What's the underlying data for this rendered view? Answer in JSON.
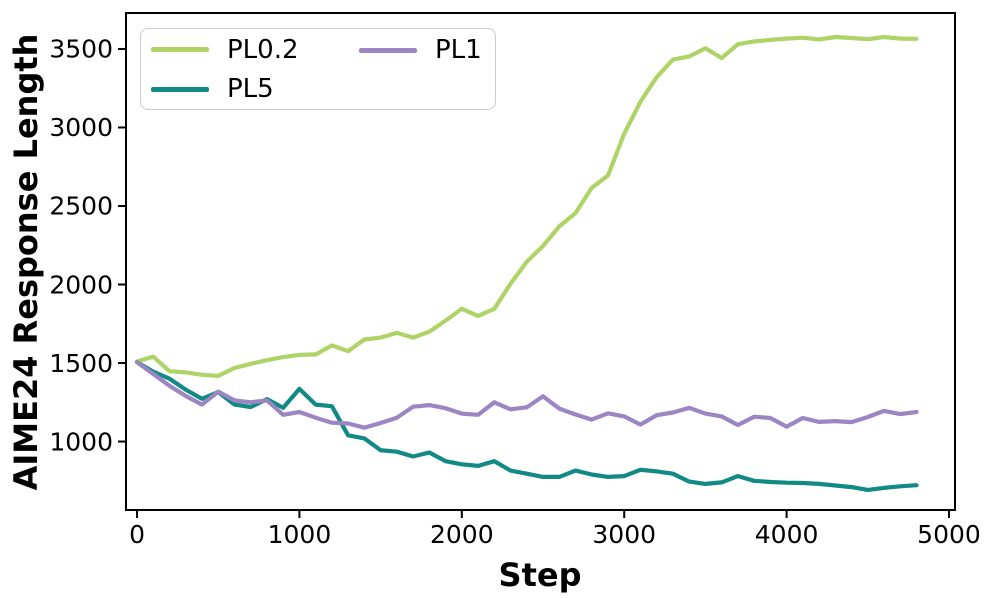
{
  "figure": {
    "background": "#ffffff",
    "frame_color": "#000000",
    "tick_font_px": 25
  },
  "chart_data": {
    "type": "line",
    "title": "",
    "xlabel": "Step",
    "ylabel": "AIME24 Response Length",
    "xlim": [
      -68,
      5037
    ],
    "ylim": [
      564,
      3729
    ],
    "x_ticks": [
      0,
      1000,
      2000,
      3000,
      4000,
      5000
    ],
    "y_ticks": [
      1000,
      1500,
      2000,
      2500,
      3000,
      3500
    ],
    "grid": false,
    "legend_position": "upper left",
    "legend_columns": 2,
    "x": [
      0,
      100,
      200,
      300,
      400,
      500,
      600,
      700,
      800,
      900,
      1000,
      1100,
      1200,
      1300,
      1400,
      1500,
      1600,
      1700,
      1800,
      1900,
      2000,
      2100,
      2200,
      2300,
      2400,
      2500,
      2600,
      2700,
      2800,
      2900,
      3000,
      3100,
      3200,
      3300,
      3400,
      3500,
      3600,
      3700,
      3800,
      3900,
      4000,
      4100,
      4200,
      4300,
      4400,
      4500,
      4600,
      4700,
      4800
    ],
    "series": [
      {
        "name": "PL0.2",
        "color": "#aed468",
        "values": [
          1510,
          1540,
          1448,
          1440,
          1425,
          1418,
          1468,
          1495,
          1518,
          1538,
          1552,
          1555,
          1612,
          1575,
          1650,
          1662,
          1692,
          1662,
          1700,
          1770,
          1845,
          1800,
          1845,
          2005,
          2145,
          2245,
          2370,
          2455,
          2615,
          2695,
          2960,
          3165,
          3320,
          3432,
          3452,
          3505,
          3442,
          3530,
          3548,
          3558,
          3566,
          3572,
          3560,
          3576,
          3570,
          3562,
          3576,
          3566,
          3565
        ]
      },
      {
        "name": "PL5",
        "color": "#118a86",
        "values": [
          1505,
          1445,
          1400,
          1330,
          1272,
          1315,
          1235,
          1220,
          1270,
          1215,
          1335,
          1235,
          1225,
          1040,
          1020,
          945,
          935,
          905,
          930,
          875,
          855,
          845,
          875,
          815,
          795,
          775,
          775,
          815,
          790,
          775,
          780,
          820,
          810,
          795,
          745,
          730,
          740,
          780,
          750,
          742,
          738,
          736,
          730,
          720,
          710,
          692,
          705,
          715,
          722
        ]
      },
      {
        "name": "PL1",
        "color": "#9b86c3",
        "values": [
          1505,
          1430,
          1355,
          1290,
          1235,
          1318,
          1262,
          1250,
          1262,
          1170,
          1188,
          1152,
          1120,
          1115,
          1088,
          1118,
          1152,
          1222,
          1232,
          1212,
          1178,
          1170,
          1250,
          1205,
          1218,
          1288,
          1210,
          1172,
          1140,
          1180,
          1160,
          1108,
          1168,
          1185,
          1215,
          1178,
          1160,
          1105,
          1158,
          1150,
          1095,
          1150,
          1125,
          1130,
          1124,
          1156,
          1195,
          1175,
          1188
        ]
      }
    ]
  }
}
